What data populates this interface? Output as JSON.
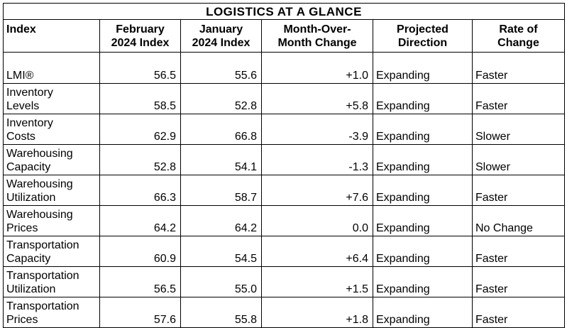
{
  "table": {
    "title": "LOGISTICS AT A GLANCE",
    "headers": [
      [
        "Index"
      ],
      [
        "February",
        "2024 Index"
      ],
      [
        "January",
        "2024 Index"
      ],
      [
        "Month-Over-",
        "Month Change"
      ],
      [
        "Projected",
        "Direction"
      ],
      [
        "Rate of",
        "Change"
      ]
    ],
    "rows": [
      {
        "name": [
          "LMI®"
        ],
        "feb": "56.5",
        "jan": "55.6",
        "change": "+1.0",
        "direction": "Expanding",
        "rate": "Faster"
      },
      {
        "name": [
          "Inventory",
          "Levels"
        ],
        "feb": "58.5",
        "jan": "52.8",
        "change": "+5.8",
        "direction": "Expanding",
        "rate": "Faster"
      },
      {
        "name": [
          "Inventory",
          "Costs"
        ],
        "feb": "62.9",
        "jan": "66.8",
        "change": "-3.9",
        "direction": "Expanding",
        "rate": "Slower"
      },
      {
        "name": [
          "Warehousing",
          "Capacity"
        ],
        "feb": "52.8",
        "jan": "54.1",
        "change": "-1.3",
        "direction": "Expanding",
        "rate": "Slower"
      },
      {
        "name": [
          "Warehousing",
          "Utilization"
        ],
        "feb": "66.3",
        "jan": "58.7",
        "change": "+7.6",
        "direction": "Expanding",
        "rate": "Faster"
      },
      {
        "name": [
          "Warehousing",
          "Prices"
        ],
        "feb": "64.2",
        "jan": "64.2",
        "change": "0.0",
        "direction": "Expanding",
        "rate": "No Change"
      },
      {
        "name": [
          "Transportation",
          "Capacity"
        ],
        "feb": "60.9",
        "jan": "54.5",
        "change": "+6.4",
        "direction": "Expanding",
        "rate": "Faster"
      },
      {
        "name": [
          "Transportation",
          "Utilization"
        ],
        "feb": "56.5",
        "jan": "55.0",
        "change": "+1.5",
        "direction": "Expanding",
        "rate": "Faster"
      },
      {
        "name": [
          "Transportation",
          "Prices"
        ],
        "feb": "57.6",
        "jan": "55.8",
        "change": "+1.8",
        "direction": "Expanding",
        "rate": "Faster"
      }
    ]
  }
}
